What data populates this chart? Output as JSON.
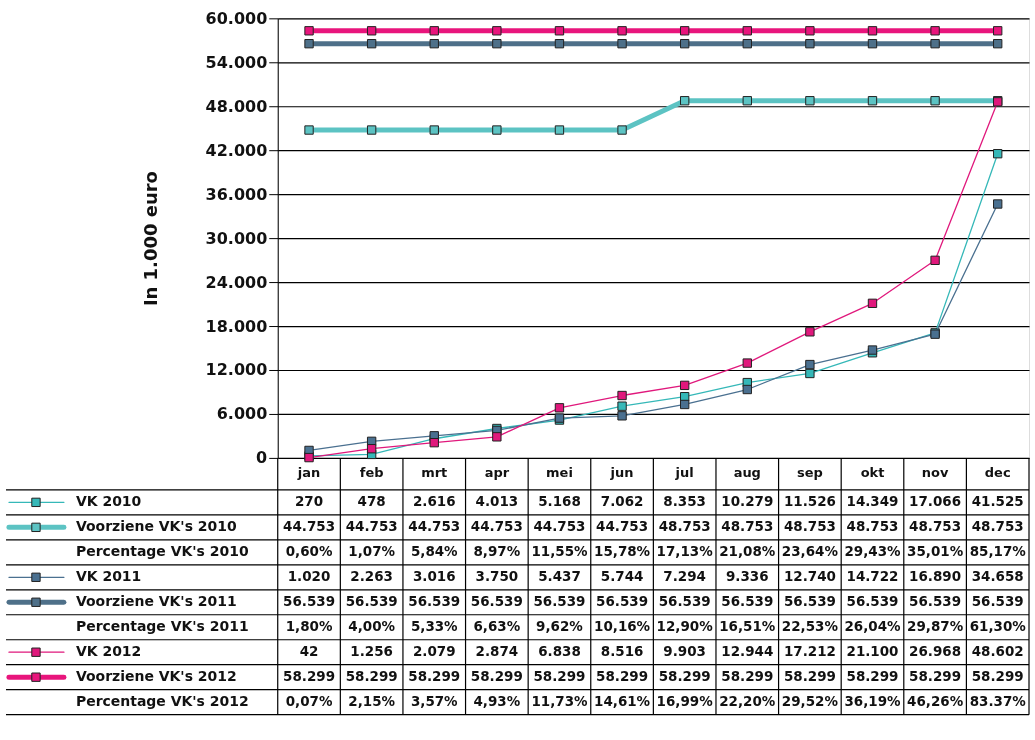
{
  "chart_data": {
    "type": "line",
    "ylabel": "In 1.000 euro",
    "categories": [
      "jan",
      "feb",
      "mrt",
      "apr",
      "mei",
      "jun",
      "jul",
      "aug",
      "sep",
      "okt",
      "nov",
      "dec"
    ],
    "ylim": [
      0,
      60000
    ],
    "yticks": [
      0,
      {
        "value": 6000,
        "label": "6.000"
      },
      {
        "value": 12000,
        "label": "12.000"
      },
      {
        "value": 18000,
        "label": "18.000"
      },
      {
        "value": 24000,
        "label": "24.000"
      },
      {
        "value": 30000,
        "label": "30.000"
      },
      {
        "value": 36000,
        "label": "36.000"
      },
      {
        "value": 42000,
        "label": "42.000"
      },
      {
        "value": 48000,
        "label": "48.000"
      },
      {
        "value": 54000,
        "label": "54.000"
      },
      {
        "value": 60000,
        "label": "60.000"
      }
    ],
    "grid": "y",
    "marker": "square",
    "line_style": "solid",
    "legend": "bottom left",
    "series": [
      {
        "name": "VK 2010",
        "color": "#35b8b8",
        "values": [
          270,
          478,
          2616,
          4013,
          5168,
          7062,
          8353,
          10279,
          11526,
          14349,
          17066,
          41525
        ],
        "value_labels": [
          "270",
          "478",
          "2.616",
          "4.013",
          "5.168",
          "7.062",
          "8.353",
          "10.279",
          "11.526",
          "14.349",
          "17.066",
          "41.525"
        ]
      },
      {
        "name": "Voorziene VK's 2010",
        "color": "#5cc3c3",
        "values": [
          44753,
          44753,
          44753,
          44753,
          44753,
          44753,
          48753,
          48753,
          48753,
          48753,
          48753,
          48753
        ],
        "value_labels": [
          "44.753",
          "44.753",
          "44.753",
          "44.753",
          "44.753",
          "44.753",
          "48.753",
          "48.753",
          "48.753",
          "48.753",
          "48.753",
          "48.753"
        ]
      },
      {
        "name": "Percentage VK's 2010",
        "values": [
          null,
          null,
          null,
          null,
          null,
          null,
          null,
          null,
          null,
          null,
          null,
          null
        ],
        "value_labels": [
          "0,60%",
          "1,07%",
          "5,84%",
          "8,97%",
          "11,55%",
          "15,78%",
          "17,13%",
          "21,08%",
          "23,64%",
          "29,43%",
          "35,01%",
          "85,17%"
        ]
      },
      {
        "name": "VK 2011",
        "color": "#4a7090",
        "values": [
          1020,
          2263,
          3016,
          3750,
          5437,
          5744,
          7294,
          9336,
          12740,
          14722,
          16890,
          34658
        ],
        "value_labels": [
          "1.020",
          "2.263",
          "3.016",
          "3.750",
          "5.437",
          "5.744",
          "7.294",
          "9.336",
          "12.740",
          "14.722",
          "16.890",
          "34.658"
        ]
      },
      {
        "name": "Voorziene VK's 2011",
        "color": "#4e7089",
        "values": [
          56539,
          56539,
          56539,
          56539,
          56539,
          56539,
          56539,
          56539,
          56539,
          56539,
          56539,
          56539
        ],
        "value_labels": [
          "56.539",
          "56.539",
          "56.539",
          "56.539",
          "56.539",
          "56.539",
          "56.539",
          "56.539",
          "56.539",
          "56.539",
          "56.539",
          "56.539"
        ]
      },
      {
        "name": "Percentage VK's 2011",
        "values": [
          null,
          null,
          null,
          null,
          null,
          null,
          null,
          null,
          null,
          null,
          null,
          null
        ],
        "value_labels": [
          "1,80%",
          "4,00%",
          "5,33%",
          "6,63%",
          "9,62%",
          "10,16%",
          "12,90%",
          "16,51%",
          "22,53%",
          "26,04%",
          "29,87%",
          "61,30%"
        ]
      },
      {
        "name": "VK 2012",
        "color": "#e0187c",
        "values": [
          42,
          1256,
          2079,
          2874,
          6838,
          8516,
          9903,
          12944,
          17212,
          21100,
          26968,
          48602
        ],
        "value_labels": [
          "42",
          "1.256",
          "2.079",
          "2.874",
          "6.838",
          "8.516",
          "9.903",
          "12.944",
          "17.212",
          "21.100",
          "26.968",
          "48.602"
        ]
      },
      {
        "name": "Voorziene VK's 2012",
        "color": "#e8157c",
        "values": [
          58299,
          58299,
          58299,
          58299,
          58299,
          58299,
          58299,
          58299,
          58299,
          58299,
          58299,
          58299
        ],
        "value_labels": [
          "58.299",
          "58.299",
          "58.299",
          "58.299",
          "58.299",
          "58.299",
          "58.299",
          "58.299",
          "58.299",
          "58.299",
          "58.299",
          "58.299"
        ]
      },
      {
        "name": "Percentage VK's 2012",
        "values": [
          null,
          null,
          null,
          null,
          null,
          null,
          null,
          null,
          null,
          null,
          null,
          null
        ],
        "value_labels": [
          "0,07%",
          "2,15%",
          "3,57%",
          "4,93%",
          "11,73%",
          "14,61%",
          "16,99%",
          "22,20%",
          "29,52%",
          "36,19%",
          "46,26%",
          "83.37%"
        ]
      }
    ]
  }
}
